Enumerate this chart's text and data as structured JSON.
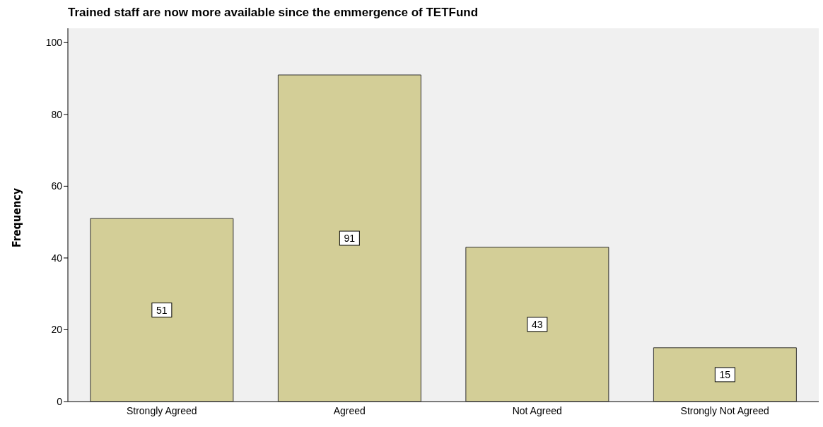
{
  "chart_data": {
    "type": "bar",
    "title": "Trained staff are now more available since the emmergence of TETFund",
    "ylabel": "Frequency",
    "categories": [
      "Strongly Agreed",
      "Agreed",
      "Not Agreed",
      "Strongly Not Agreed"
    ],
    "values": [
      51,
      91,
      43,
      15
    ],
    "color": "#d3ce97",
    "ylim": [
      0,
      104
    ],
    "yticks": [
      0,
      20,
      40,
      60,
      80,
      100
    ],
    "grid": false,
    "data_labels": true
  }
}
